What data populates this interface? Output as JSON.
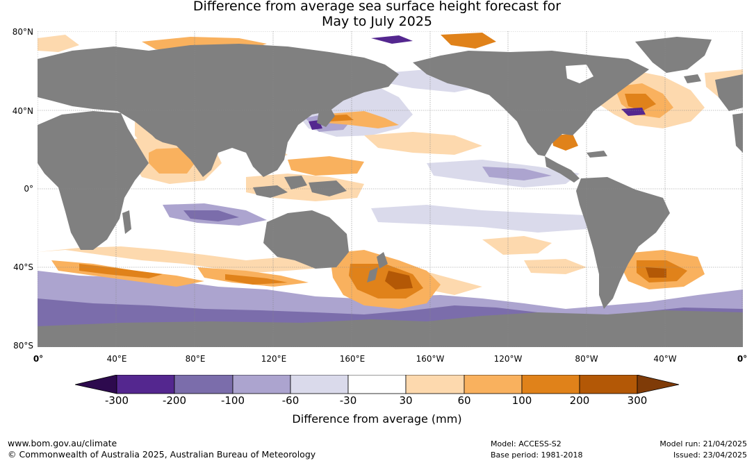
{
  "title": {
    "line1": "Difference from average sea surface height forecast for",
    "line2": "May to July 2025"
  },
  "map": {
    "lat_labels": [
      "80°N",
      "40°N",
      "0°",
      "40°S",
      "80°S"
    ],
    "lon_labels": [
      "0°",
      "40°E",
      "80°E",
      "120°E",
      "160°E",
      "160°W",
      "120°W",
      "80°W",
      "40°W",
      "0°"
    ],
    "colors": {
      "land": "#808080",
      "ocean_neutral": "#ffffff",
      "grid": "#888888"
    }
  },
  "legend": {
    "title": "Difference from average (mm)",
    "ticks": [
      "-300",
      "-200",
      "-100",
      "-60",
      "-30",
      "30",
      "60",
      "100",
      "200",
      "300"
    ],
    "colors": [
      "#2d0a4e",
      "#54278f",
      "#7b6dab",
      "#aca4cf",
      "#dadaeb",
      "#ffffff",
      "#fdd9ae",
      "#f9b15e",
      "#e0821a",
      "#b35806",
      "#7f3b08"
    ]
  },
  "footer": {
    "website": "www.bom.gov.au/climate",
    "copyright": "© Commonwealth of Australia 2025, Australian Bureau of Meteorology",
    "model": "Model: ACCESS-S2",
    "base_period": "Base period: 1981-2018",
    "model_run": "Model run: 21/04/2025",
    "issued": "Issued: 23/04/2025"
  }
}
